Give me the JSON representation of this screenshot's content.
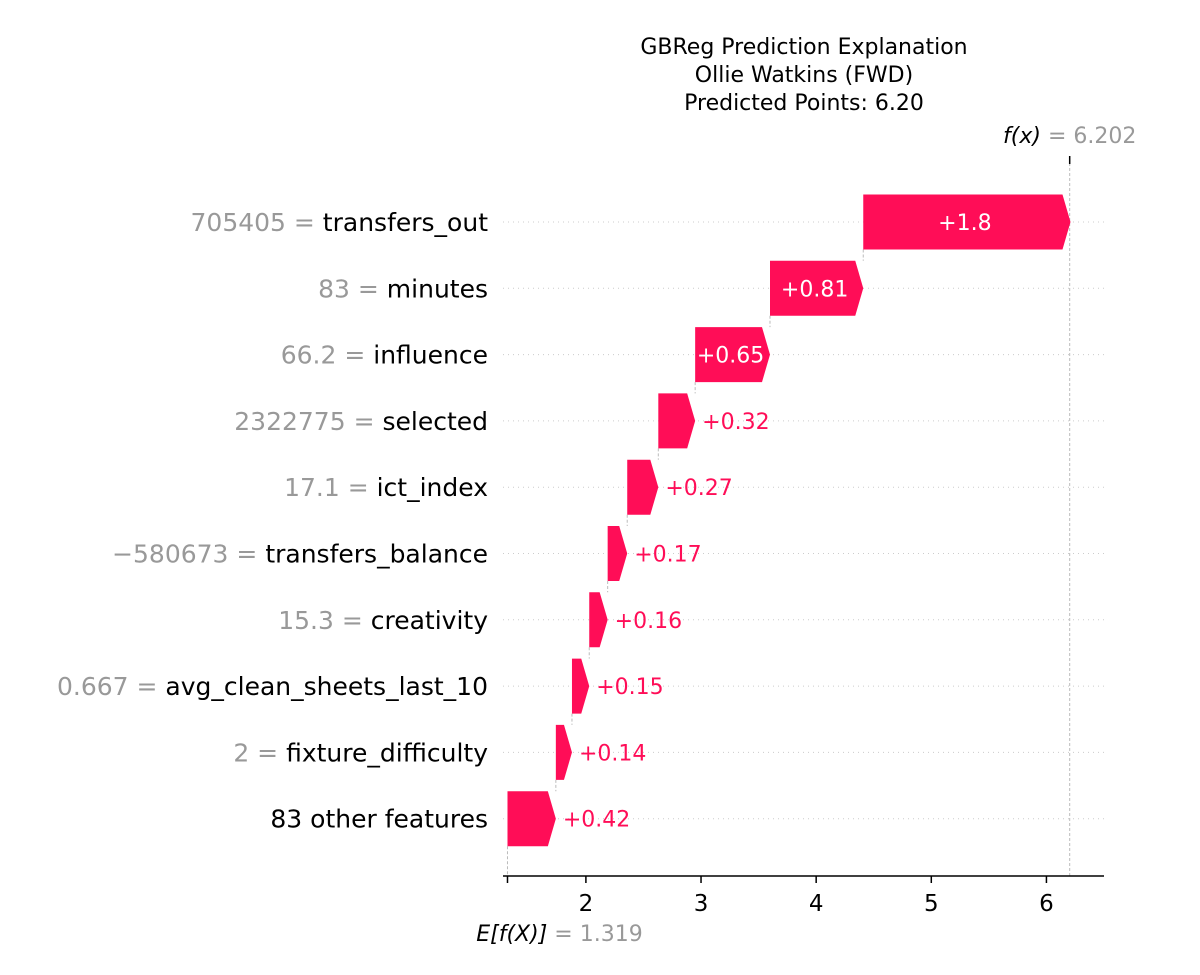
{
  "chart_data": {
    "type": "waterfall",
    "title_lines": [
      "GBReg Prediction Explanation",
      "Ollie Watkins (FWD)",
      "Predicted Points: 6.20"
    ],
    "base_value": 1.319,
    "base_label": "E[f(X)]",
    "base_value_label": "= 1.319",
    "output_value": 6.202,
    "output_label": "f(x)",
    "output_value_label": "= 6.202",
    "x_ticks": [
      2,
      3,
      4,
      5,
      6
    ],
    "x_tick_labels": [
      "2",
      "3",
      "4",
      "5",
      "6"
    ],
    "xlim": [
      1.28,
      6.5
    ],
    "colors": {
      "positive": "#ff0d57",
      "negative": "#1e88e5",
      "value_text": "#999999",
      "rule": "#cccccc"
    },
    "features": [
      {
        "name": "transfers_out",
        "value": "705405",
        "contribution": 1.8,
        "label": "+1.8"
      },
      {
        "name": "minutes",
        "value": "83",
        "contribution": 0.81,
        "label": "+0.81"
      },
      {
        "name": "influence",
        "value": "66.2",
        "contribution": 0.65,
        "label": "+0.65"
      },
      {
        "name": "selected",
        "value": "2322775",
        "contribution": 0.32,
        "label": "+0.32"
      },
      {
        "name": "ict_index",
        "value": "17.1",
        "contribution": 0.27,
        "label": "+0.27"
      },
      {
        "name": "transfers_balance",
        "value": "−580673",
        "contribution": 0.17,
        "label": "+0.17"
      },
      {
        "name": "creativity",
        "value": "15.3",
        "contribution": 0.16,
        "label": "+0.16"
      },
      {
        "name": "avg_clean_sheets_last_10",
        "value": "0.667",
        "contribution": 0.15,
        "label": "+0.15"
      },
      {
        "name": "fixture_difficulty",
        "value": "2",
        "contribution": 0.14,
        "label": "+0.14"
      },
      {
        "name": "83 other features",
        "value": "",
        "contribution": 0.42,
        "label": "+0.42"
      }
    ]
  }
}
